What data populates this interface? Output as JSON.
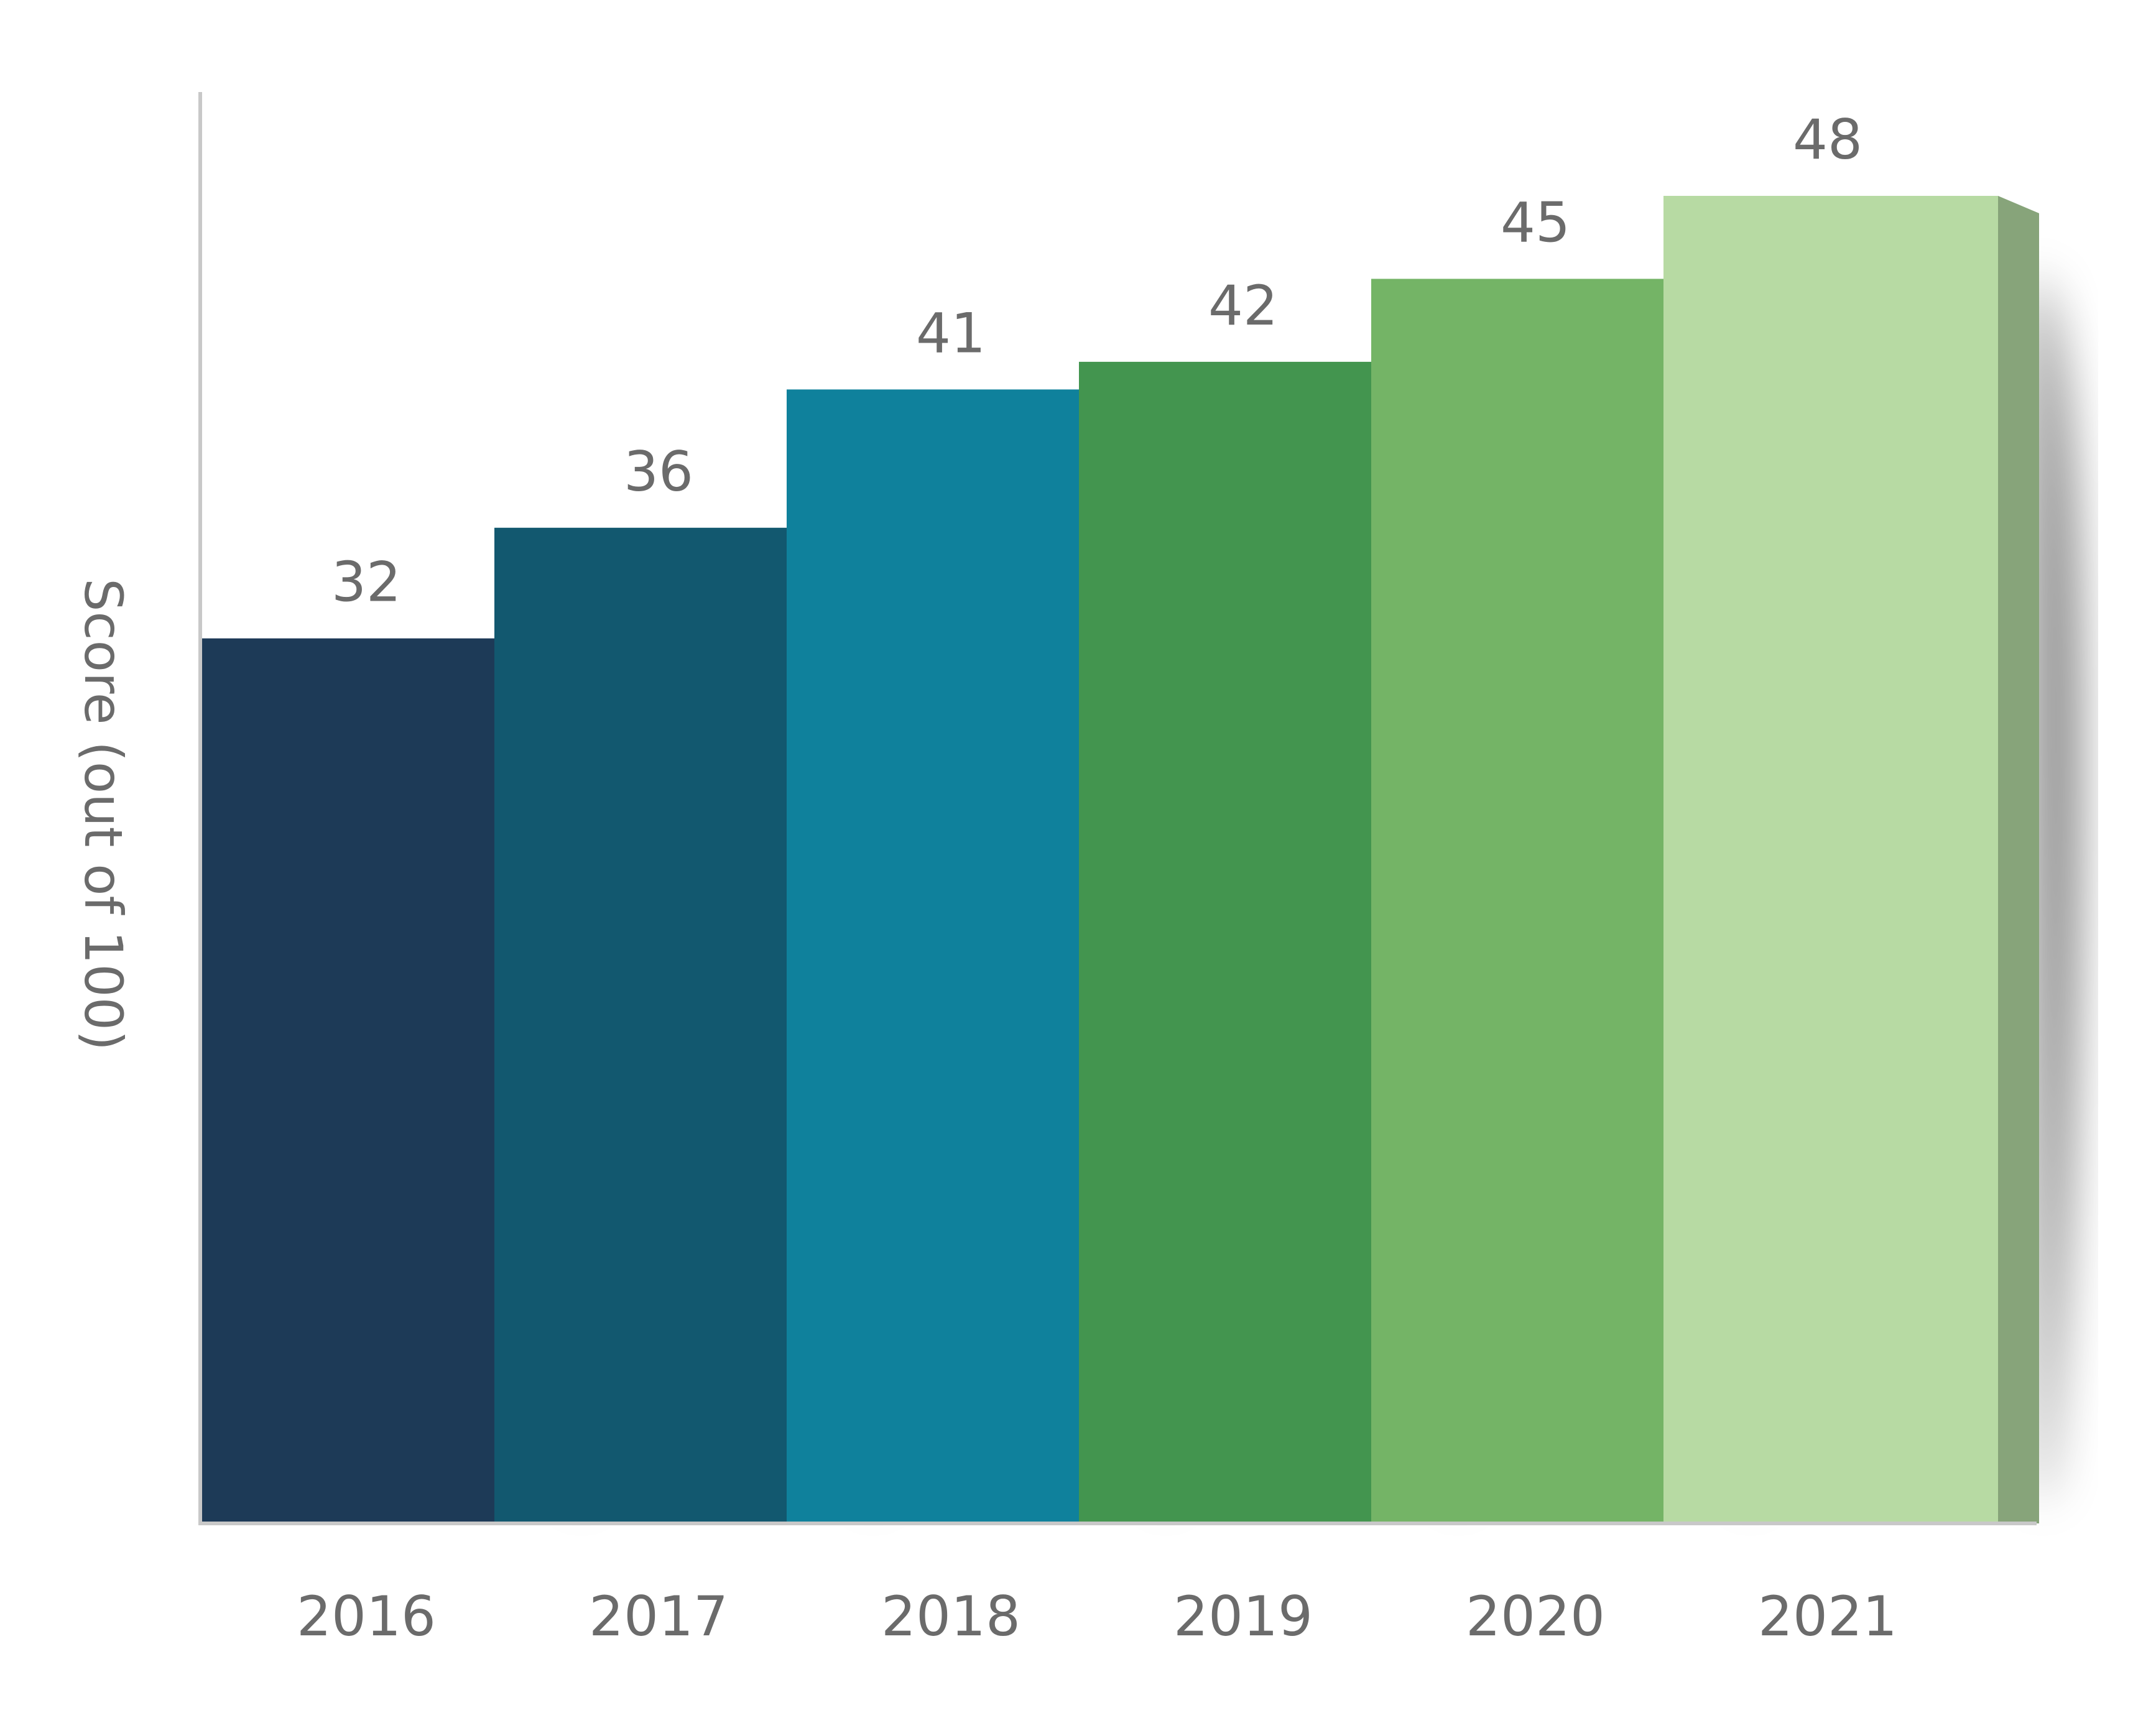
{
  "chart_data": {
    "type": "bar",
    "title": "",
    "xlabel": "",
    "ylabel": "Score (out of 100)",
    "categories": [
      "2016",
      "2017",
      "2018",
      "2019",
      "2020",
      "2021"
    ],
    "values": [
      32,
      36,
      41,
      42,
      45,
      48
    ],
    "ylim": [
      0,
      50
    ],
    "grid": false,
    "legend": "none",
    "colors": [
      {
        "front": "#1d3a57",
        "side": "#08263f"
      },
      {
        "front": "#12586f",
        "side": "#023f54"
      },
      {
        "front": "#0f819c",
        "side": "#05657d"
      },
      {
        "front": "#43954f",
        "side": "#2c733a"
      },
      {
        "front": "#74b466",
        "side": "#5a9150"
      },
      {
        "front": "#b7daa3",
        "side": "#87a47a"
      }
    ]
  }
}
